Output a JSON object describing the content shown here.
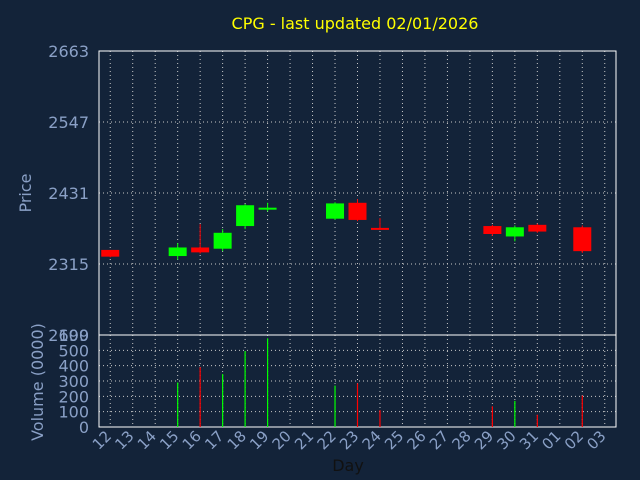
{
  "chart_data": [
    {
      "type": "candlestick",
      "title": "CPG - last updated 02/01/2026",
      "ylabel": "Price",
      "ylim": [
        2199,
        2663
      ],
      "yticks": [
        2199,
        2315,
        2431,
        2547,
        2663
      ],
      "grid": true,
      "up_color": "#00ff00",
      "down_color": "#ff0000",
      "categories": [
        "12",
        "13",
        "14",
        "15",
        "16",
        "17",
        "18",
        "19",
        "20",
        "21",
        "22",
        "23",
        "24",
        "25",
        "26",
        "27",
        "28",
        "29",
        "30",
        "31",
        "01",
        "02",
        "03"
      ],
      "candles": [
        {
          "day": "12",
          "open": 2338,
          "close": 2327,
          "high": 2338,
          "low": 2326
        },
        {
          "day": "15",
          "open": 2328,
          "close": 2342,
          "high": 2349,
          "low": 2322
        },
        {
          "day": "16",
          "open": 2342,
          "close": 2334,
          "high": 2380,
          "low": 2332
        },
        {
          "day": "17",
          "open": 2340,
          "close": 2366,
          "high": 2372,
          "low": 2336
        },
        {
          "day": "18",
          "open": 2377,
          "close": 2411,
          "high": 2413,
          "low": 2372
        },
        {
          "day": "19",
          "open": 2405,
          "close": 2407,
          "high": 2415,
          "low": 2401
        },
        {
          "day": "22",
          "open": 2389,
          "close": 2414,
          "high": 2416,
          "low": 2387
        },
        {
          "day": "23",
          "open": 2415,
          "close": 2387,
          "high": 2421,
          "low": 2385
        },
        {
          "day": "24",
          "open": 2374,
          "close": 2373,
          "high": 2390,
          "low": 2372
        },
        {
          "day": "29",
          "open": 2377,
          "close": 2364,
          "high": 2379,
          "low": 2361
        },
        {
          "day": "30",
          "open": 2360,
          "close": 2375,
          "high": 2378,
          "low": 2352
        },
        {
          "day": "31",
          "open": 2379,
          "close": 2368,
          "high": 2381,
          "low": 2366
        },
        {
          "day": "02",
          "open": 2375,
          "close": 2336,
          "high": 2378,
          "low": 2333
        }
      ]
    },
    {
      "type": "bar",
      "ylabel": "Volume (0000)",
      "xlabel": "Day",
      "ylim": [
        0,
        600
      ],
      "yticks": [
        0,
        100,
        200,
        300,
        400,
        500,
        600
      ],
      "grid": true,
      "categories": [
        "12",
        "13",
        "14",
        "15",
        "16",
        "17",
        "18",
        "19",
        "20",
        "21",
        "22",
        "23",
        "24",
        "25",
        "26",
        "27",
        "28",
        "29",
        "30",
        "31",
        "01",
        "02",
        "03"
      ],
      "bars": [
        {
          "day": "15",
          "value": 290,
          "direction": "up"
        },
        {
          "day": "16",
          "value": 390,
          "direction": "down"
        },
        {
          "day": "17",
          "value": 345,
          "direction": "up"
        },
        {
          "day": "18",
          "value": 495,
          "direction": "up"
        },
        {
          "day": "19",
          "value": 578,
          "direction": "up"
        },
        {
          "day": "22",
          "value": 270,
          "direction": "up"
        },
        {
          "day": "23",
          "value": 285,
          "direction": "down"
        },
        {
          "day": "24",
          "value": 110,
          "direction": "down"
        },
        {
          "day": "29",
          "value": 135,
          "direction": "down"
        },
        {
          "day": "30",
          "value": 170,
          "direction": "up"
        },
        {
          "day": "31",
          "value": 80,
          "direction": "down"
        },
        {
          "day": "02",
          "value": 205,
          "direction": "down"
        }
      ]
    }
  ],
  "colors": {
    "background": "#132339",
    "title": "#ffff00",
    "axis_text": "#8aa0c6",
    "grid": "#c8c8c8"
  }
}
